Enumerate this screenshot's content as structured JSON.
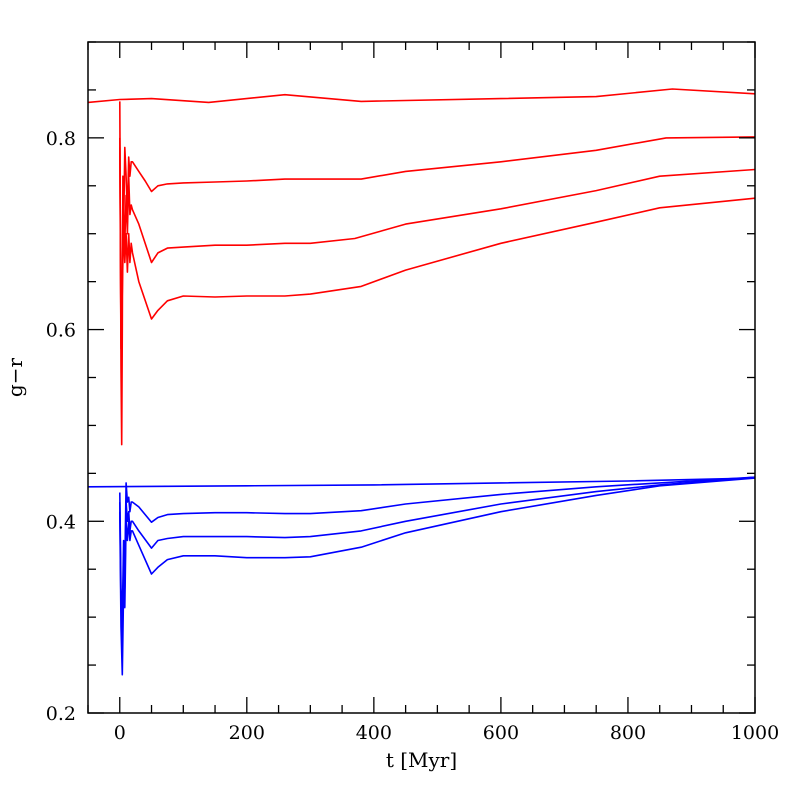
{
  "chart_data": {
    "type": "line",
    "title": "",
    "xlabel": "t [Myr]",
    "ylabel": "g−r",
    "xlim": [
      -50,
      1000
    ],
    "ylim": [
      0.2,
      0.9
    ],
    "xticks": [
      0,
      200,
      400,
      600,
      800,
      1000
    ],
    "yticks": [
      0.2,
      0.4,
      0.6,
      0.8
    ],
    "xtick_labels": [
      "0",
      "200",
      "400",
      "600",
      "800",
      "1000"
    ],
    "ytick_labels": [
      "0.2",
      "0.4",
      "0.6",
      "0.8"
    ],
    "x_minor_step": 50,
    "y_minor_step": 0.05,
    "grid": false,
    "colors": {
      "red": "#ff0000",
      "blue": "#0000ff"
    },
    "series": [
      {
        "color": "#ff0000",
        "x": [
          -50,
          0,
          50,
          140,
          260,
          380,
          600,
          750,
          870,
          1000
        ],
        "y": [
          0.837,
          0.84,
          0.841,
          0.837,
          0.845,
          0.838,
          0.841,
          0.843,
          0.851,
          0.846
        ]
      },
      {
        "color": "#ff0000",
        "x": [
          0,
          1,
          2,
          3,
          4,
          5,
          6,
          8,
          10,
          12,
          14,
          16,
          18,
          20,
          25,
          30,
          40,
          50,
          60,
          75,
          100,
          150,
          200,
          260,
          300,
          380,
          450,
          600,
          750,
          860,
          1000
        ],
        "y": [
          0.838,
          0.7,
          0.56,
          0.48,
          0.6,
          0.76,
          0.7,
          0.79,
          0.76,
          0.72,
          0.78,
          0.76,
          0.775,
          0.775,
          0.77,
          0.765,
          0.755,
          0.744,
          0.75,
          0.752,
          0.753,
          0.754,
          0.755,
          0.757,
          0.757,
          0.757,
          0.765,
          0.775,
          0.787,
          0.8,
          0.801
        ]
      },
      {
        "color": "#ff0000",
        "x": [
          0,
          2,
          4,
          6,
          8,
          10,
          12,
          14,
          16,
          18,
          20,
          30,
          50,
          60,
          75,
          100,
          150,
          200,
          260,
          300,
          370,
          450,
          600,
          750,
          850,
          1000
        ],
        "y": [
          0.8,
          0.59,
          0.66,
          0.73,
          0.69,
          0.74,
          0.7,
          0.76,
          0.72,
          0.73,
          0.725,
          0.71,
          0.67,
          0.68,
          0.685,
          0.686,
          0.688,
          0.688,
          0.69,
          0.69,
          0.695,
          0.71,
          0.726,
          0.745,
          0.76,
          0.767
        ]
      },
      {
        "color": "#ff0000",
        "x": [
          0,
          2,
          4,
          6,
          8,
          10,
          12,
          14,
          16,
          18,
          20,
          30,
          50,
          60,
          75,
          100,
          150,
          200,
          260,
          300,
          380,
          450,
          600,
          750,
          850,
          1000
        ],
        "y": [
          0.79,
          0.58,
          0.64,
          0.71,
          0.67,
          0.7,
          0.66,
          0.7,
          0.67,
          0.69,
          0.68,
          0.65,
          0.611,
          0.62,
          0.63,
          0.635,
          0.634,
          0.635,
          0.635,
          0.637,
          0.645,
          0.662,
          0.69,
          0.712,
          0.727,
          0.737
        ]
      },
      {
        "color": "#0000ff",
        "x": [
          -50,
          200,
          400,
          600,
          800,
          1000
        ],
        "y": [
          0.436,
          0.437,
          0.438,
          0.44,
          0.442,
          0.445
        ]
      },
      {
        "color": "#0000ff",
        "x": [
          0,
          2,
          4,
          6,
          8,
          10,
          12,
          14,
          16,
          18,
          20,
          30,
          50,
          60,
          75,
          100,
          150,
          200,
          260,
          300,
          380,
          450,
          600,
          750,
          850,
          1000
        ],
        "y": [
          0.43,
          0.33,
          0.3,
          0.38,
          0.35,
          0.44,
          0.42,
          0.425,
          0.41,
          0.42,
          0.42,
          0.415,
          0.399,
          0.404,
          0.407,
          0.408,
          0.409,
          0.409,
          0.408,
          0.408,
          0.411,
          0.418,
          0.428,
          0.436,
          0.44,
          0.446
        ]
      },
      {
        "color": "#0000ff",
        "x": [
          0,
          2,
          4,
          6,
          8,
          10,
          12,
          14,
          16,
          18,
          20,
          30,
          50,
          60,
          75,
          100,
          150,
          200,
          260,
          300,
          380,
          450,
          600,
          750,
          850,
          1000
        ],
        "y": [
          0.42,
          0.31,
          0.28,
          0.36,
          0.33,
          0.42,
          0.4,
          0.41,
          0.39,
          0.4,
          0.4,
          0.39,
          0.372,
          0.38,
          0.382,
          0.384,
          0.384,
          0.384,
          0.383,
          0.384,
          0.39,
          0.4,
          0.418,
          0.431,
          0.438,
          0.446
        ]
      },
      {
        "color": "#0000ff",
        "x": [
          0,
          2,
          4,
          6,
          8,
          10,
          12,
          14,
          16,
          18,
          20,
          30,
          50,
          60,
          75,
          100,
          150,
          200,
          260,
          300,
          380,
          450,
          600,
          750,
          850,
          1000
        ],
        "y": [
          0.41,
          0.29,
          0.24,
          0.33,
          0.31,
          0.4,
          0.38,
          0.4,
          0.38,
          0.39,
          0.39,
          0.375,
          0.345,
          0.352,
          0.36,
          0.364,
          0.364,
          0.362,
          0.362,
          0.363,
          0.373,
          0.388,
          0.41,
          0.427,
          0.437,
          0.445
        ]
      }
    ]
  }
}
